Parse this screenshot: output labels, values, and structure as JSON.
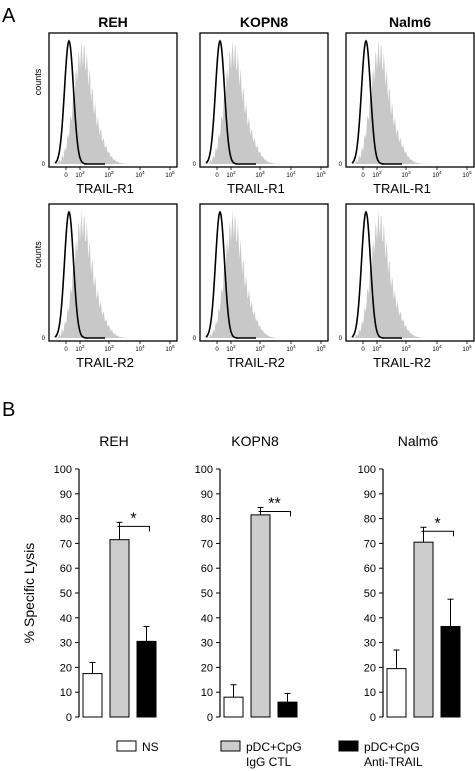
{
  "panel_a": {
    "label": "A",
    "ylabel": "counts",
    "tick_zero": "0",
    "x_ticks": [
      "0",
      "10",
      "10",
      "10",
      "10",
      "10"
    ],
    "x_tick_exp": [
      "",
      "2",
      "3",
      "4",
      "5"
    ],
    "cells": [
      {
        "title": "REH",
        "xlabel": "TRAIL-R1"
      },
      {
        "title": "KOPN8",
        "xlabel": "TRAIL-R1"
      },
      {
        "title": "Nalm6",
        "xlabel": "TRAIL-R1"
      },
      {
        "title": "",
        "xlabel": "TRAIL-R2"
      },
      {
        "title": "",
        "xlabel": "TRAIL-R2"
      },
      {
        "title": "",
        "xlabel": "TRAIL-R2"
      }
    ]
  },
  "panel_b": {
    "label": "B",
    "ylabel": "% Specific Lysis",
    "y_ticks": [
      "0",
      "10",
      "20",
      "30",
      "40",
      "50",
      "60",
      "70",
      "80",
      "90",
      "100"
    ],
    "legend": [
      {
        "line1": "NS",
        "line2": "",
        "color": "#ffffff"
      },
      {
        "line1": "pDC+CpG",
        "line2": "IgG CTL",
        "color": "#cccccc"
      },
      {
        "line1": "pDC+CpG",
        "line2": "Anti-TRAIL",
        "color": "#000000"
      }
    ]
  },
  "chart_data": [
    {
      "type": "bar",
      "title": "REH",
      "categories": [
        "NS",
        "pDC+CpG IgG CTL",
        "pDC+CpG Anti-TRAIL"
      ],
      "values": [
        17.5,
        71.5,
        30.5
      ],
      "errors": [
        4.5,
        7,
        6
      ],
      "colors": [
        "#ffffff",
        "#cccccc",
        "#000000"
      ],
      "ylabel": "% Specific Lysis",
      "ylim": [
        0,
        100
      ],
      "significance": "*"
    },
    {
      "type": "bar",
      "title": "KOPN8",
      "categories": [
        "NS",
        "pDC+CpG IgG CTL",
        "pDC+CpG Anti-TRAIL"
      ],
      "values": [
        8,
        81.5,
        6
      ],
      "errors": [
        5,
        3,
        3.5
      ],
      "colors": [
        "#ffffff",
        "#cccccc",
        "#000000"
      ],
      "ylim": [
        0,
        100
      ],
      "significance": "**"
    },
    {
      "type": "bar",
      "title": "Nalm6",
      "categories": [
        "NS",
        "pDC+CpG IgG CTL",
        "pDC+CpG Anti-TRAIL"
      ],
      "values": [
        19.5,
        70.5,
        36.5
      ],
      "errors": [
        7.5,
        6,
        11
      ],
      "colors": [
        "#ffffff",
        "#cccccc",
        "#000000"
      ],
      "ylim": [
        0,
        100
      ],
      "significance": "*"
    }
  ]
}
